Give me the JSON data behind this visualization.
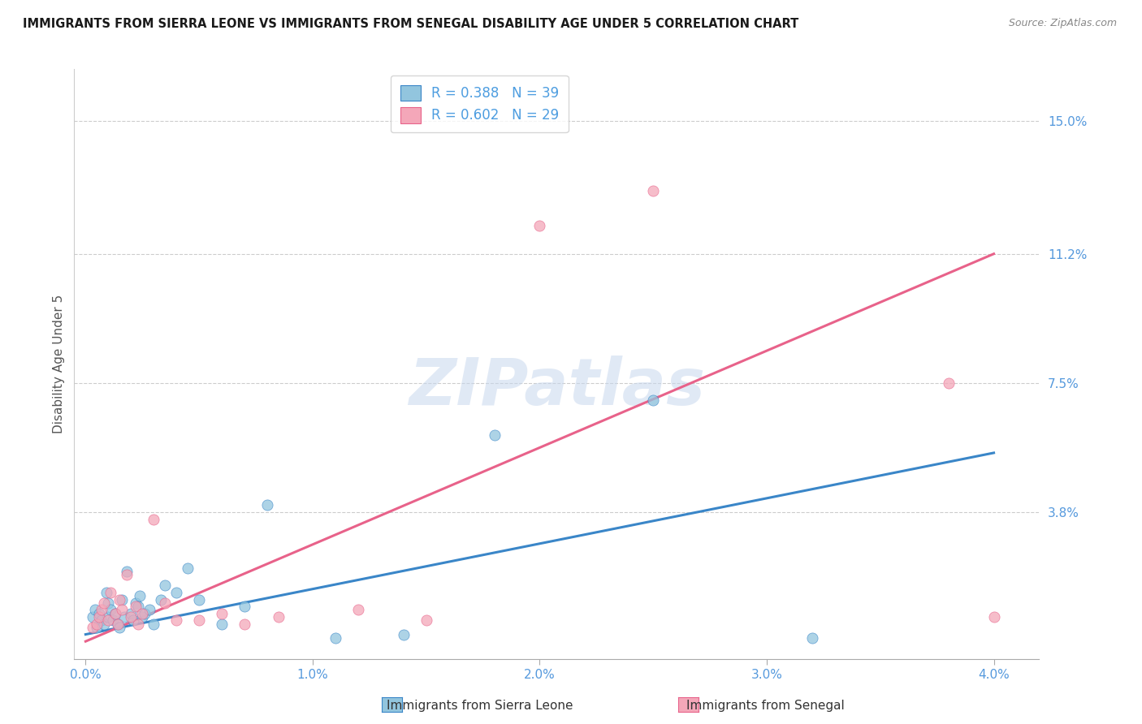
{
  "title": "IMMIGRANTS FROM SIERRA LEONE VS IMMIGRANTS FROM SENEGAL DISABILITY AGE UNDER 5 CORRELATION CHART",
  "source": "Source: ZipAtlas.com",
  "ylabel": "Disability Age Under 5",
  "xlabel_sierra": "Immigrants from Sierra Leone",
  "xlabel_senegal": "Immigrants from Senegal",
  "x_ticks": [
    "0.0%",
    "1.0%",
    "2.0%",
    "3.0%",
    "4.0%"
  ],
  "x_tick_vals": [
    0.0,
    0.01,
    0.02,
    0.03,
    0.04
  ],
  "y_ticks_right": [
    "15.0%",
    "11.2%",
    "7.5%",
    "3.8%"
  ],
  "y_tick_vals_right": [
    0.15,
    0.112,
    0.075,
    0.038
  ],
  "xlim": [
    -0.0005,
    0.042
  ],
  "ylim": [
    -0.004,
    0.165
  ],
  "legend_R_sierra": "R = 0.388",
  "legend_N_sierra": "N = 39",
  "legend_R_senegal": "R = 0.602",
  "legend_N_senegal": "N = 29",
  "color_sierra": "#92c5de",
  "color_senegal": "#f4a7b9",
  "color_line_sierra": "#3a86c8",
  "color_line_senegal": "#e8628a",
  "color_text_blue": "#4d9de0",
  "color_axis_labels": "#5599dd",
  "sierra_x": [
    0.0003,
    0.0004,
    0.0005,
    0.0006,
    0.0007,
    0.0008,
    0.0009,
    0.001,
    0.001,
    0.0011,
    0.0012,
    0.0013,
    0.0014,
    0.0015,
    0.0016,
    0.0017,
    0.0018,
    0.002,
    0.0021,
    0.0022,
    0.0023,
    0.0024,
    0.0025,
    0.0026,
    0.0028,
    0.003,
    0.0033,
    0.0035,
    0.004,
    0.0045,
    0.005,
    0.006,
    0.007,
    0.008,
    0.011,
    0.014,
    0.018,
    0.025,
    0.032
  ],
  "sierra_y": [
    0.008,
    0.01,
    0.005,
    0.009,
    0.007,
    0.006,
    0.015,
    0.012,
    0.008,
    0.01,
    0.007,
    0.009,
    0.006,
    0.005,
    0.013,
    0.008,
    0.021,
    0.009,
    0.007,
    0.012,
    0.011,
    0.014,
    0.008,
    0.009,
    0.01,
    0.006,
    0.013,
    0.017,
    0.015,
    0.022,
    0.013,
    0.006,
    0.011,
    0.04,
    0.002,
    0.003,
    0.06,
    0.07,
    0.002
  ],
  "senegal_x": [
    0.0003,
    0.0005,
    0.0006,
    0.0007,
    0.0008,
    0.001,
    0.0011,
    0.0013,
    0.0014,
    0.0015,
    0.0016,
    0.0018,
    0.002,
    0.0022,
    0.0023,
    0.0025,
    0.003,
    0.0035,
    0.004,
    0.005,
    0.006,
    0.007,
    0.0085,
    0.012,
    0.015,
    0.02,
    0.025,
    0.038,
    0.04
  ],
  "senegal_y": [
    0.005,
    0.006,
    0.008,
    0.01,
    0.012,
    0.007,
    0.015,
    0.009,
    0.006,
    0.013,
    0.01,
    0.02,
    0.008,
    0.011,
    0.006,
    0.009,
    0.036,
    0.012,
    0.007,
    0.007,
    0.009,
    0.006,
    0.008,
    0.01,
    0.007,
    0.12,
    0.13,
    0.075,
    0.008
  ],
  "line_sierra_x0": 0.0,
  "line_sierra_y0": 0.003,
  "line_sierra_x1": 0.04,
  "line_sierra_y1": 0.055,
  "line_senegal_x0": 0.0,
  "line_senegal_y0": 0.001,
  "line_senegal_x1": 0.04,
  "line_senegal_y1": 0.112,
  "watermark_text": "ZIPatlas",
  "watermark_color": "#c8d8ee",
  "background_color": "#ffffff",
  "grid_color": "#cccccc"
}
